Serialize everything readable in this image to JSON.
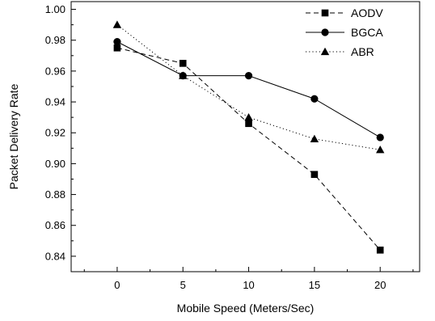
{
  "chart_data": {
    "type": "line",
    "xlabel": "Mobile Speed (Meters/Sec)",
    "ylabel": "Packet Delivery Rate",
    "x": [
      0,
      5,
      10,
      15,
      20
    ],
    "xlim": [
      -3.5,
      23
    ],
    "ylim": [
      0.83,
      1.005
    ],
    "xticks": [
      0,
      5,
      10,
      15,
      20
    ],
    "yticks": [
      0.84,
      0.86,
      0.88,
      0.9,
      0.92,
      0.94,
      0.96,
      0.98,
      1.0
    ],
    "ytick_labels": [
      "0.84",
      "0.86",
      "0.88",
      "0.90",
      "0.92",
      "0.94",
      "0.96",
      "0.98",
      "1.00"
    ],
    "grid": false,
    "legend_position": "top-right",
    "series": [
      {
        "name": "AODV",
        "values": [
          0.975,
          0.965,
          0.926,
          0.893,
          0.844
        ],
        "marker": "square",
        "line_style": "dashed",
        "color": "#000000"
      },
      {
        "name": "BGCA",
        "values": [
          0.979,
          0.957,
          0.957,
          0.942,
          0.917
        ],
        "marker": "circle",
        "line_style": "solid",
        "color": "#000000"
      },
      {
        "name": "ABR",
        "values": [
          0.99,
          0.957,
          0.93,
          0.916,
          0.909
        ],
        "marker": "triangle",
        "line_style": "dotted",
        "color": "#000000"
      }
    ]
  }
}
